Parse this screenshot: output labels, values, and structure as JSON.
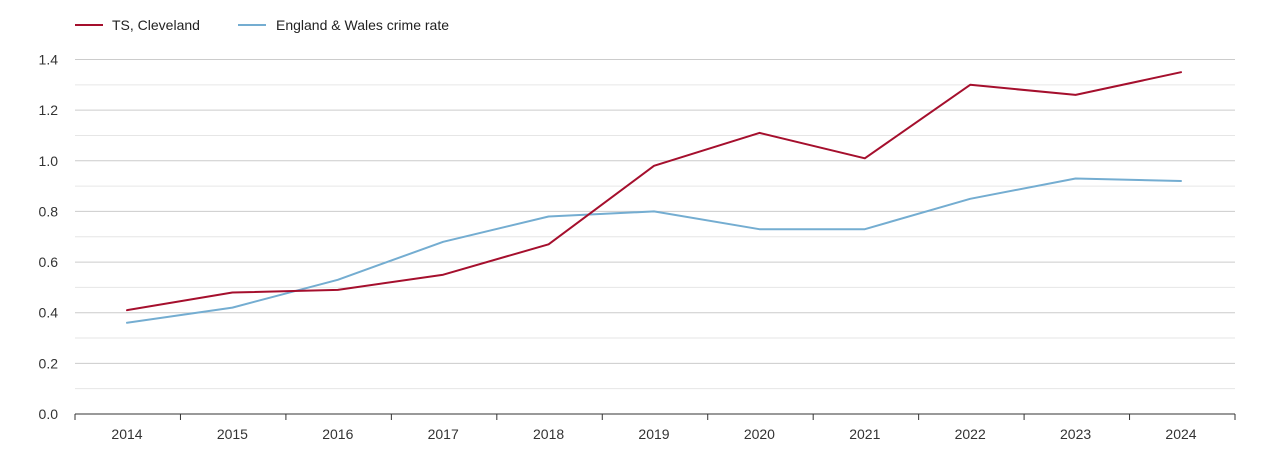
{
  "chart_data": {
    "type": "line",
    "title": "",
    "xlabel": "",
    "ylabel": "",
    "categories": [
      "2014",
      "2015",
      "2016",
      "2017",
      "2018",
      "2019",
      "2020",
      "2021",
      "2022",
      "2023",
      "2024"
    ],
    "series": [
      {
        "name": "TS, Cleveland",
        "color": "#a50f2d",
        "values": [
          0.41,
          0.48,
          0.49,
          0.55,
          0.67,
          0.98,
          1.11,
          1.01,
          1.3,
          1.26,
          1.35
        ]
      },
      {
        "name": "England & Wales crime rate",
        "color": "#74add1",
        "values": [
          0.36,
          0.42,
          0.53,
          0.68,
          0.78,
          0.8,
          0.73,
          0.73,
          0.85,
          0.93,
          0.92
        ]
      }
    ],
    "ylim": [
      0,
      1.4
    ],
    "yticks": [
      "0.0",
      "0.2",
      "0.4",
      "0.6",
      "0.8",
      "1.0",
      "1.2",
      "1.4"
    ],
    "grid": true,
    "legend_position": "top-left"
  }
}
